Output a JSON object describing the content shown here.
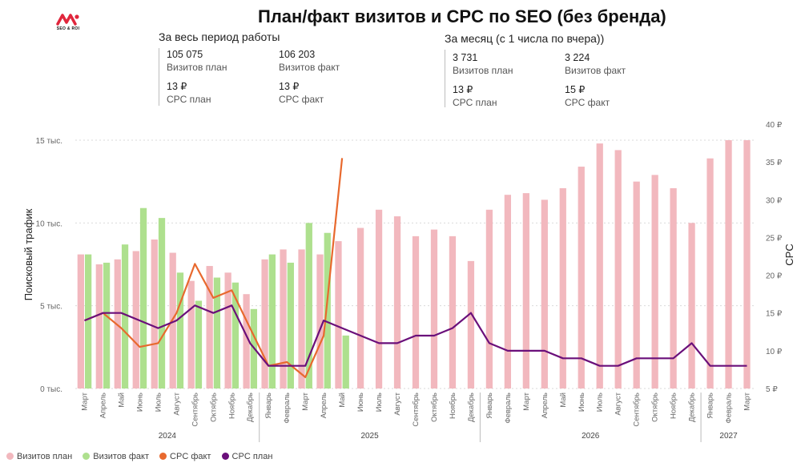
{
  "logo": {
    "text": "SEO & ROI"
  },
  "title": "План/факт визитов и CPC по SEO (без бренда)",
  "kpi_period": {
    "heading": "За весь период работы",
    "visits_plan_value": "105 075",
    "visits_plan_label": "Визитов план",
    "visits_fact_value": "106 203",
    "visits_fact_label": "Визитов факт",
    "cpc_plan_value": "13 ₽",
    "cpc_plan_label": "CPC план",
    "cpc_fact_value": "13 ₽",
    "cpc_fact_label": "CPC факт"
  },
  "kpi_month": {
    "heading": "За месяц (с 1 числа по вчера))",
    "visits_plan_value": "3 731",
    "visits_plan_label": "Визитов план",
    "visits_fact_value": "3 224",
    "visits_fact_label": "Визитов факт",
    "cpc_plan_value": "13 ₽",
    "cpc_plan_label": "CPC план",
    "cpc_fact_value": "15 ₽",
    "cpc_fact_label": "CPC факт"
  },
  "colors": {
    "plan_bar": "#f2b8be",
    "fact_bar": "#aee08e",
    "cpc_fact": "#e8692e",
    "cpc_plan": "#6a0f7a",
    "grid": "#d9d9d9",
    "axis_text": "#666666"
  },
  "chart_data": {
    "type": "bar+line",
    "ylabel": "Поисковый трафик",
    "y2label": "CPC",
    "ylim": [
      0,
      15000
    ],
    "y2lim": [
      5,
      40
    ],
    "y_ticks": [
      0,
      5000,
      10000,
      15000
    ],
    "y_tick_labels": [
      "0 тыс.",
      "5 тыс.",
      "10 тыс.",
      "15 тыс."
    ],
    "y2_ticks": [
      5,
      10,
      15,
      20,
      25,
      30,
      35,
      40
    ],
    "y2_tick_labels": [
      "5 ₽",
      "10 ₽",
      "15 ₽",
      "20 ₽",
      "25 ₽",
      "30 ₽",
      "35 ₽",
      "40 ₽"
    ],
    "categories": [
      "Март",
      "Апрель",
      "Май",
      "Июнь",
      "Июль",
      "Август",
      "Сентябрь",
      "Октябрь",
      "Ноябрь",
      "Декабрь",
      "Январь",
      "Февраль",
      "Март",
      "Апрель",
      "Май",
      "Июнь",
      "Июль",
      "Август",
      "Сентябрь",
      "Октябрь",
      "Ноябрь",
      "Декабрь",
      "Январь",
      "Февраль",
      "Март",
      "Апрель",
      "Май",
      "Июнь",
      "Июль",
      "Август",
      "Сентябрь",
      "Октябрь",
      "Ноябрь",
      "Декабрь",
      "Январь",
      "Февраль",
      "Март"
    ],
    "years": [
      {
        "label": "2024",
        "start": 0,
        "end": 9
      },
      {
        "label": "2025",
        "start": 10,
        "end": 21
      },
      {
        "label": "2026",
        "start": 22,
        "end": 33
      },
      {
        "label": "2027",
        "start": 34,
        "end": 36
      }
    ],
    "series": [
      {
        "name": "Визитов план",
        "kind": "bar",
        "axis": "left",
        "values": [
          8100,
          7500,
          7800,
          8300,
          9000,
          8200,
          6500,
          7400,
          7000,
          5700,
          7800,
          8400,
          8400,
          8100,
          8900,
          9700,
          10800,
          10400,
          9200,
          9600,
          9200,
          7700,
          10800,
          11700,
          11800,
          11400,
          12100,
          13400,
          14800,
          14400,
          12500,
          12900,
          12100,
          10000,
          13900,
          15000,
          15000
        ]
      },
      {
        "name": "Визитов факт",
        "kind": "bar",
        "axis": "left",
        "values": [
          8100,
          7600,
          8700,
          10900,
          10300,
          7000,
          5300,
          6700,
          6400,
          4800,
          8100,
          7600,
          10000,
          9400,
          3200,
          null,
          null,
          null,
          null,
          null,
          null,
          null,
          null,
          null,
          null,
          null,
          null,
          null,
          null,
          null,
          null,
          null,
          null,
          null,
          null,
          null,
          null
        ]
      },
      {
        "name": "CPC факт",
        "kind": "line",
        "axis": "right",
        "values": [
          14,
          15,
          13,
          10.5,
          11,
          15,
          21.5,
          17,
          18,
          13,
          8,
          8.5,
          6.5,
          12,
          35.5,
          null,
          null,
          null,
          null,
          null,
          null,
          null,
          null,
          null,
          null,
          null,
          null,
          null,
          null,
          null,
          null,
          null,
          null,
          null,
          null,
          null,
          null
        ]
      },
      {
        "name": "CPC план",
        "kind": "line",
        "axis": "right",
        "values": [
          14,
          15,
          15,
          14,
          13,
          14,
          16,
          15,
          16,
          11,
          8,
          8,
          8,
          14,
          13,
          12,
          11,
          11,
          12,
          12,
          13,
          15,
          11,
          10,
          10,
          10,
          9,
          9,
          8,
          8,
          9,
          9,
          9,
          11,
          8,
          8,
          8
        ]
      }
    ],
    "legend": [
      "Визитов план",
      "Визитов факт",
      "CPC факт",
      "CPC план"
    ],
    "legend_position": "bottom-left"
  }
}
